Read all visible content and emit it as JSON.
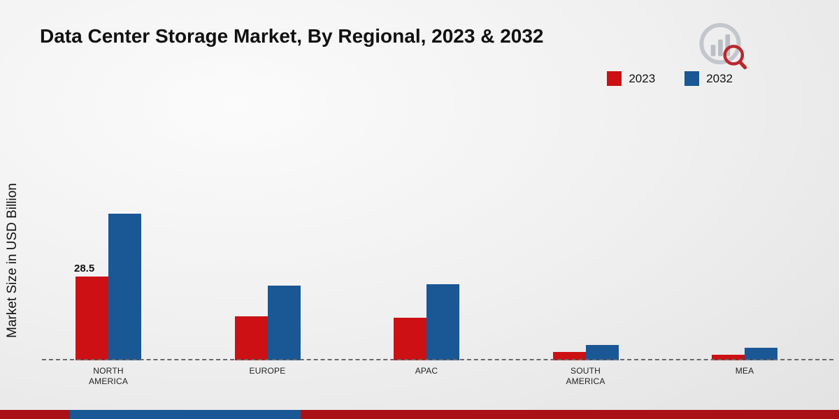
{
  "page": {
    "title": "Data Center Storage Market, By Regional, 2023 & 2032"
  },
  "legend": [
    {
      "label": "2023",
      "color": "#cc1013"
    },
    {
      "label": "2032",
      "color": "#1a5795"
    }
  ],
  "chart_data": {
    "type": "bar",
    "title": "Data Center Storage Market, By Regional, 2023 & 2032",
    "xlabel": "",
    "ylabel": "Market Size in USD Billion",
    "categories": [
      "NORTH AMERICA",
      "EUROPE",
      "APAC",
      "SOUTH AMERICA",
      "MEA"
    ],
    "series": [
      {
        "name": "2023",
        "color": "#cc1013",
        "values": [
          28.5,
          15,
          14.5,
          2.8,
          2.0
        ],
        "labels": [
          "28.5",
          "",
          "",
          "",
          ""
        ]
      },
      {
        "name": "2032",
        "color": "#1a5795",
        "values": [
          50,
          25.5,
          26,
          5.2,
          4.2
        ],
        "labels": [
          "",
          "",
          "",
          "",
          ""
        ]
      }
    ],
    "ylim": [
      0,
      100
    ],
    "grid": false,
    "legend_position": "top-right",
    "baseline_style": "dashed",
    "annotations": [
      {
        "text": "28.5",
        "series": "2023",
        "category": "NORTH AMERICA"
      }
    ]
  },
  "footer": {
    "red_color": "#a91116",
    "blue_color": "#1a5795"
  }
}
